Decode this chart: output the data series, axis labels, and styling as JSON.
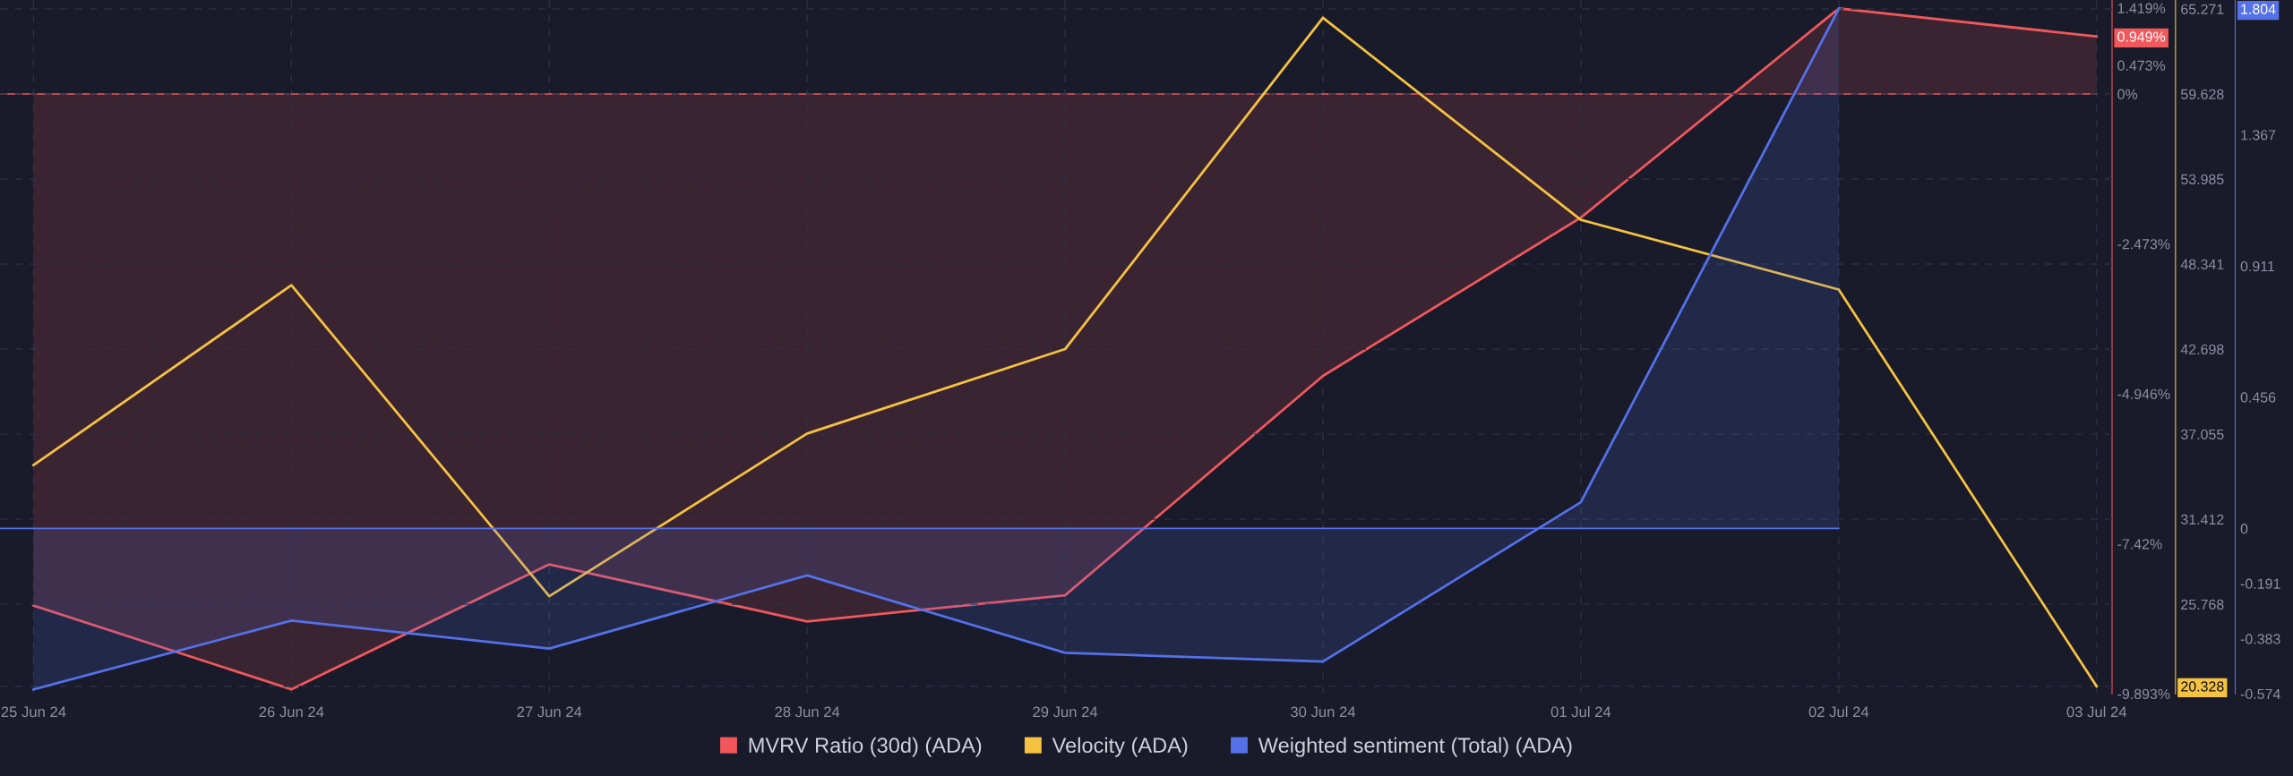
{
  "chart_data": {
    "type": "line",
    "categories": [
      "25 Jun 24",
      "26 Jun 24",
      "27 Jun 24",
      "28 Jun 24",
      "29 Jun 24",
      "30 Jun 24",
      "01 Jul 24",
      "02 Jul 24",
      "03 Jul 24"
    ],
    "series": [
      {
        "name": "MVRV Ratio (30d) (ADA)",
        "color": "#f0585c",
        "type": "area",
        "axis": "y",
        "values": [
          -8.44,
          -9.82,
          -7.76,
          -8.7,
          -8.27,
          -4.65,
          -2.04,
          1.41,
          0.949
        ]
      },
      {
        "name": "Velocity (ADA)",
        "color": "#f5c242",
        "axis": "y2",
        "values": [
          35.0,
          46.94,
          26.3,
          37.1,
          42.7,
          64.69,
          51.28,
          46.65,
          20.328
        ]
      },
      {
        "name": "Weighted sentiment (Total) (ADA)",
        "color": "#5471e8",
        "type": "area",
        "axis": "y3",
        "values": [
          -0.559,
          -0.32,
          -0.417,
          -0.163,
          -0.432,
          -0.462,
          0.091,
          1.804,
          null
        ]
      }
    ],
    "ref_lines": [
      {
        "axis": "y",
        "value": 0,
        "color": "#f0585c"
      },
      {
        "axis": "y3",
        "value": 0,
        "color": "#5471e8"
      }
    ],
    "ylim": [
      -9.893,
      1.55
    ],
    "yticks": [
      {
        "value": 1.419,
        "label": "1.419%"
      },
      {
        "value": 0.949,
        "label": "0.949%"
      },
      {
        "value": 0.473,
        "label": "0.473%"
      },
      {
        "value": 0,
        "label": "0%"
      },
      {
        "value": -2.473,
        "label": "-2.473%"
      },
      {
        "value": -4.946,
        "label": "-4.946%"
      },
      {
        "value": -7.42,
        "label": "-7.42%"
      },
      {
        "value": -9.893,
        "label": "-9.893%"
      }
    ],
    "y2lim": [
      19.83,
      65.865
    ],
    "y2ticks": [
      65.271,
      59.628,
      53.985,
      48.341,
      42.698,
      37.055,
      31.412,
      25.768,
      20.328
    ],
    "y3lim": [
      -0.574,
      1.835
    ],
    "y3ticks": [
      1.804,
      1.367,
      0.911,
      0.456,
      0,
      -0.191,
      -0.383,
      -0.574
    ],
    "grid": true,
    "legend": "bottom"
  }
}
